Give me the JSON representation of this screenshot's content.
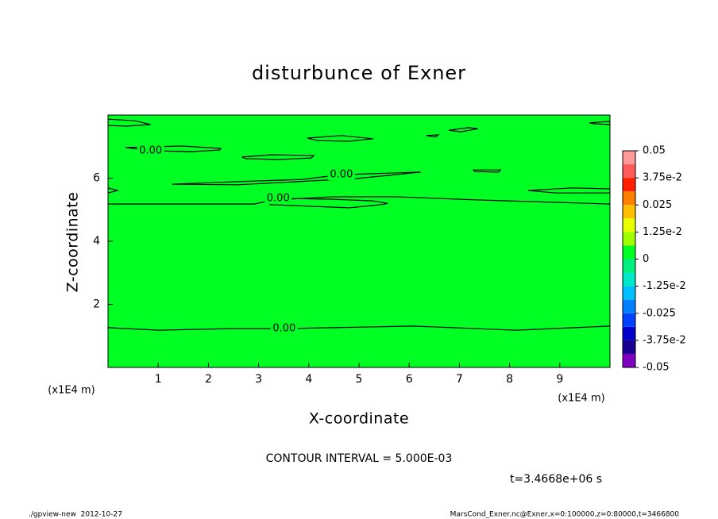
{
  "chart_data": {
    "type": "contour",
    "title": "disturbunce of Exner",
    "x_label": "X-coordinate",
    "y_label": "Z-coordinate",
    "x_unit_label": "(x1E4 m)",
    "xlim": [
      0,
      10
    ],
    "ylim": [
      0,
      8
    ],
    "xticks": [
      1,
      2,
      3,
      4,
      5,
      6,
      7,
      8,
      9
    ],
    "yticks": [
      2,
      4,
      6
    ],
    "field_color": "#00ff22",
    "line_color": "#000000",
    "contours": [
      {
        "level": 0,
        "label": "0.00",
        "closed": false,
        "x": [
          0,
          1.01,
          2.44,
          3.51,
          6.08,
          8.13,
          10
        ],
        "y": [
          1.26,
          1.18,
          1.23,
          1.23,
          1.31,
          1.18,
          1.31
        ]
      },
      {
        "level": 0,
        "closed": false,
        "x": [
          0,
          2.91,
          3.31,
          4.49,
          5.76,
          7.34,
          10
        ],
        "y": [
          5.18,
          5.18,
          5.31,
          5.41,
          5.41,
          5.31,
          5.18
        ]
      },
      {
        "level": 0,
        "label": "0.00",
        "closed": true,
        "x": [
          5.44,
          4.81,
          3.23,
          3.39,
          4.49,
          5.28,
          5.57
        ],
        "y": [
          5.16,
          5.06,
          5.16,
          5.36,
          5.33,
          5.28,
          5.2
        ]
      },
      {
        "level": 0,
        "label": "0.00",
        "closed": true,
        "x": [
          1.28,
          2.59,
          3.86,
          4.65,
          6.23,
          4.97,
          2.59
        ],
        "y": [
          5.81,
          5.89,
          5.96,
          6.11,
          6.19,
          5.99,
          5.79
        ]
      },
      {
        "level": 0,
        "label": "0.00",
        "closed": true,
        "x": [
          2.25,
          1.49,
          0.35,
          0.85,
          1.65,
          2.22
        ],
        "y": [
          6.94,
          7.02,
          6.97,
          6.87,
          6.84,
          6.89
        ]
      },
      {
        "level": 0,
        "closed": true,
        "x": [
          2.67,
          3.23,
          4.1,
          4.05,
          3.39,
          2.75
        ],
        "y": [
          6.67,
          6.74,
          6.72,
          6.64,
          6.59,
          6.62
        ]
      },
      {
        "level": 0,
        "closed": true,
        "x": [
          3.97,
          4.65,
          5.28,
          4.81,
          4.18
        ],
        "y": [
          7.27,
          7.35,
          7.25,
          7.17,
          7.19
        ]
      },
      {
        "level": 0,
        "closed": true,
        "x": [
          0,
          0.54,
          0.85,
          0.38,
          0
        ],
        "y": [
          7.87,
          7.82,
          7.7,
          7.65,
          7.67
        ]
      },
      {
        "level": 0,
        "closed": true,
        "x": [
          6.79,
          7.18,
          7.37,
          7.03
        ],
        "y": [
          7.52,
          7.6,
          7.57,
          7.47
        ]
      },
      {
        "level": 0,
        "closed": true,
        "x": [
          6.34,
          6.58,
          6.52
        ],
        "y": [
          7.35,
          7.37,
          7.3
        ]
      },
      {
        "level": 0,
        "closed": true,
        "x": [
          7.28,
          7.82,
          7.78,
          7.31
        ],
        "y": [
          6.26,
          6.26,
          6.19,
          6.21
        ]
      },
      {
        "level": 0,
        "closed": true,
        "x": [
          8.37,
          9.24,
          10,
          10,
          8.92
        ],
        "y": [
          5.61,
          5.69,
          5.66,
          5.53,
          5.53
        ]
      },
      {
        "level": 0,
        "closed": true,
        "x": [
          9.59,
          10,
          10,
          9.72
        ],
        "y": [
          7.75,
          7.8,
          7.7,
          7.72
        ]
      },
      {
        "level": 0,
        "closed": true,
        "x": [
          0,
          0.19,
          0
        ],
        "y": [
          5.69,
          5.61,
          5.53
        ]
      }
    ],
    "colorbar": {
      "levels": [
        -0.05,
        -0.04375,
        -0.0375,
        -0.03125,
        -0.025,
        -0.01875,
        -0.0125,
        -0.00625,
        0,
        0.00625,
        0.0125,
        0.01875,
        0.025,
        0.03125,
        0.0375,
        0.04375,
        0.05
      ],
      "colors": [
        "#8000c0",
        "#1a0090",
        "#0000c8",
        "#0040ff",
        "#0080ff",
        "#00c0ff",
        "#00e8c8",
        "#00f080",
        "#00ff22",
        "#a0ff00",
        "#e8ff00",
        "#ffc000",
        "#ff8000",
        "#ff2000",
        "#ff5a5a",
        "#ff9a9a"
      ],
      "ticks": [
        -0.05,
        {
          "value": -0.0375,
          "label": "-3.75e-2"
        },
        -0.025,
        {
          "value": -0.0125,
          "label": "-1.25e-2"
        },
        0,
        {
          "value": 0.0125,
          "label": "1.25e-2"
        },
        0.025,
        {
          "value": 0.0375,
          "label": "3.75e-2"
        },
        0.05
      ]
    },
    "contour_interval_note": "CONTOUR INTERVAL = 5.000E-03",
    "time_note": "t=3.4668e+06 s",
    "footer_left": "./gpview-new  2012-10-27",
    "footer_right": "MarsCond_Exner.nc@Exner,x=0:100000,z=0:80000,t=3466800"
  }
}
